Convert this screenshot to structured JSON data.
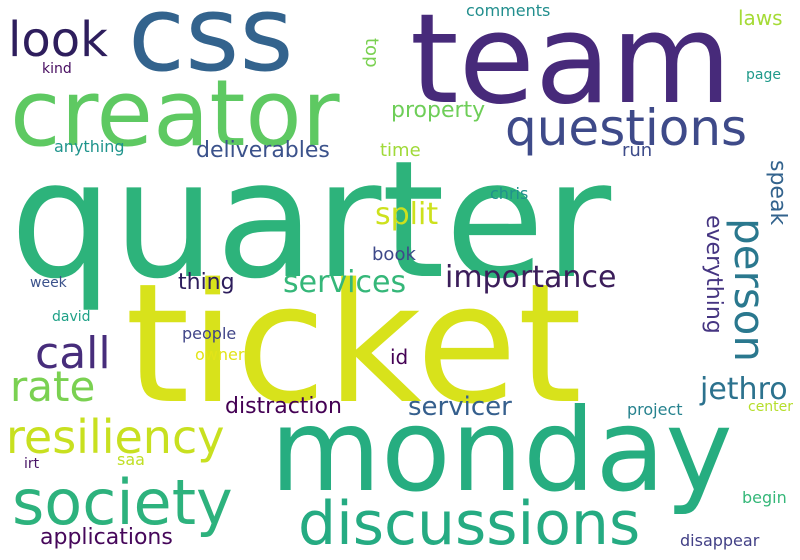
{
  "words": [
    {
      "text": "quarter",
      "color": "#2db37b"
    },
    {
      "text": "ticket",
      "color": "#d8e21b"
    },
    {
      "text": "team",
      "color": "#472a7a"
    },
    {
      "text": "monday",
      "color": "#26ad80"
    },
    {
      "text": "css",
      "color": "#33638d"
    },
    {
      "text": "creator",
      "color": "#5ec962"
    },
    {
      "text": "discussions",
      "color": "#25ab82"
    },
    {
      "text": "society",
      "color": "#2db27d"
    },
    {
      "text": "questions",
      "color": "#3e4a89"
    },
    {
      "text": "resiliency",
      "color": "#c8e020"
    },
    {
      "text": "person",
      "color": "#2a788e"
    },
    {
      "text": "look",
      "color": "#2e1e5d"
    },
    {
      "text": "call",
      "color": "#472d7b"
    },
    {
      "text": "rate",
      "color": "#7ad151"
    },
    {
      "text": "importance",
      "color": "#3b1d5a"
    },
    {
      "text": "services",
      "color": "#35b779"
    },
    {
      "text": "split",
      "color": "#cde11d"
    },
    {
      "text": "jethro",
      "color": "#2c728e"
    },
    {
      "text": "servicer",
      "color": "#355f8d"
    },
    {
      "text": "distraction",
      "color": "#440154"
    },
    {
      "text": "deliverables",
      "color": "#3b528b"
    },
    {
      "text": "applications",
      "color": "#46075a"
    },
    {
      "text": "property",
      "color": "#6ece58"
    },
    {
      "text": "thing",
      "color": "#2d1d5c"
    },
    {
      "text": "everything",
      "color": "#453581"
    },
    {
      "text": "speak",
      "color": "#33638d"
    },
    {
      "text": "laws",
      "color": "#a5db36"
    },
    {
      "text": "top",
      "color": "#7ad151"
    },
    {
      "text": "time",
      "color": "#a0da39"
    },
    {
      "text": "run",
      "color": "#3e4c8a"
    },
    {
      "text": "book",
      "color": "#3e4989"
    },
    {
      "text": "id",
      "color": "#440154"
    },
    {
      "text": "comments",
      "color": "#218e8d"
    },
    {
      "text": "kind",
      "color": "#470d60"
    },
    {
      "text": "page",
      "color": "#1f9a8a"
    },
    {
      "text": "anything",
      "color": "#1f948c"
    },
    {
      "text": "chris",
      "color": "#21918c"
    },
    {
      "text": "week",
      "color": "#3b528b"
    },
    {
      "text": "david",
      "color": "#1fa187"
    },
    {
      "text": "people",
      "color": "#404588"
    },
    {
      "text": "owner",
      "color": "#e2e418"
    },
    {
      "text": "project",
      "color": "#26828e"
    },
    {
      "text": "center",
      "color": "#b5de2b"
    },
    {
      "text": "irt",
      "color": "#471365"
    },
    {
      "text": "saa",
      "color": "#c0df25"
    },
    {
      "text": "begin",
      "color": "#35b779"
    },
    {
      "text": "disappear",
      "color": "#424086"
    }
  ]
}
